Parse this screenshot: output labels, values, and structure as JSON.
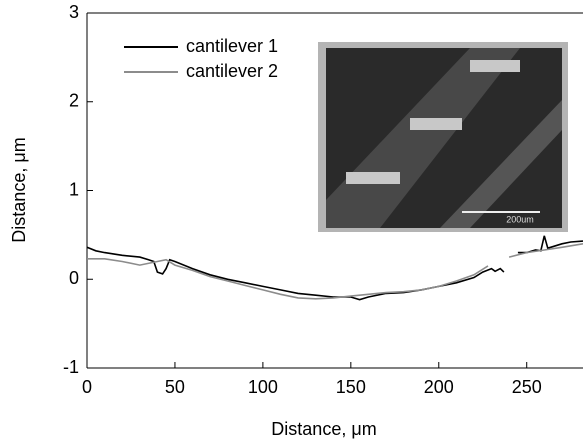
{
  "chart_data": {
    "type": "line",
    "xlabel": "Distance, μm",
    "ylabel": "Distance, μm",
    "xlim": [
      0,
      282
    ],
    "ylim": [
      -1,
      3
    ],
    "xticks": [
      0,
      50,
      100,
      150,
      200,
      250
    ],
    "yticks": [
      -1,
      0,
      1,
      2,
      3
    ],
    "legend": "upper left",
    "inset_scale_label": "200um",
    "series": [
      {
        "name": "cantilever 1",
        "color": "#000000",
        "x": [
          0,
          5,
          10,
          20,
          30,
          35,
          38,
          40,
          43,
          45,
          47,
          50,
          60,
          70,
          80,
          90,
          100,
          110,
          120,
          130,
          140,
          150,
          155,
          160,
          170,
          180,
          190,
          200,
          210,
          220,
          225,
          230,
          232,
          235,
          237,
          240,
          245,
          250,
          255,
          258,
          260,
          262,
          270,
          275,
          282
        ],
        "values": [
          0.36,
          0.32,
          0.3,
          0.27,
          0.25,
          0.22,
          0.2,
          0.08,
          0.06,
          0.12,
          0.22,
          0.2,
          0.12,
          0.05,
          0.0,
          -0.04,
          -0.08,
          -0.12,
          -0.16,
          -0.18,
          -0.2,
          -0.2,
          -0.23,
          -0.2,
          -0.16,
          -0.15,
          -0.12,
          -0.08,
          -0.04,
          0.02,
          0.08,
          0.12,
          0.09,
          0.12,
          0.08,
          null,
          0.3,
          0.3,
          0.33,
          0.32,
          0.49,
          0.35,
          0.4,
          0.42,
          0.43
        ]
      },
      {
        "name": "cantilever 2",
        "color": "#8c8c8c",
        "x": [
          0,
          10,
          20,
          30,
          40,
          45,
          50,
          60,
          70,
          80,
          90,
          100,
          110,
          120,
          130,
          140,
          150,
          160,
          170,
          180,
          190,
          200,
          210,
          220,
          228,
          234,
          240,
          250,
          260,
          270,
          282
        ],
        "values": [
          0.23,
          0.23,
          0.2,
          0.16,
          0.2,
          0.22,
          0.16,
          0.1,
          0.03,
          -0.02,
          -0.07,
          -0.12,
          -0.17,
          -0.21,
          -0.22,
          -0.21,
          -0.19,
          -0.17,
          -0.15,
          -0.14,
          -0.12,
          -0.08,
          -0.02,
          0.05,
          0.15,
          null,
          0.25,
          0.3,
          0.33,
          0.36,
          0.4
        ]
      }
    ]
  }
}
